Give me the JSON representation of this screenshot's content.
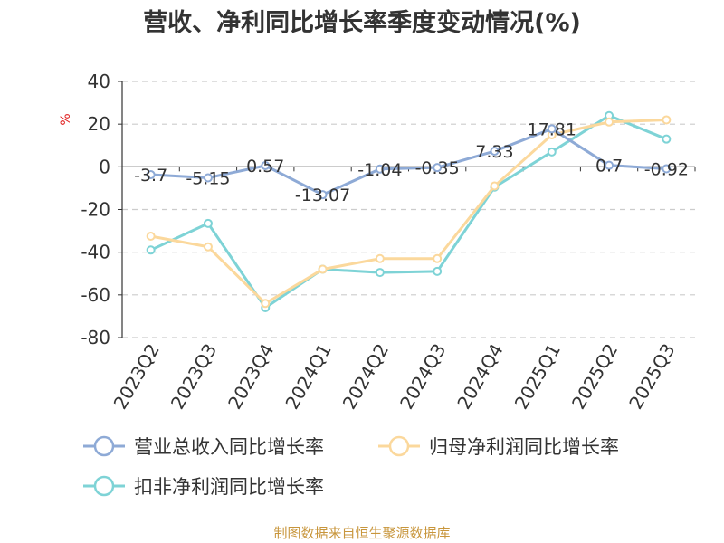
{
  "chart_data": {
    "type": "line",
    "title": "营收、净利同比增长率季度变动情况(%)",
    "ylabel": "%",
    "categories": [
      "2023Q2",
      "2023Q3",
      "2023Q4",
      "2024Q1",
      "2024Q2",
      "2024Q3",
      "2024Q4",
      "2025Q1",
      "2025Q2",
      "2025Q3"
    ],
    "ylim": [
      -80,
      40
    ],
    "yticks": [
      "40",
      "20",
      "0",
      "-20",
      "-40",
      "-60",
      "-80"
    ],
    "grid": true,
    "legend_position": "bottom",
    "series": [
      {
        "name": "营业总收入同比增长率",
        "color": "#8eaad6",
        "values": [
          -3.7,
          -5.15,
          0.57,
          -13.07,
          -1.04,
          -0.35,
          7.33,
          17.81,
          0.7,
          -0.92
        ],
        "labels": [
          "-3.7",
          "-5.15",
          "0.57",
          "-13.07",
          "-1.04",
          "-0.35",
          "7.33",
          "17.81",
          "0.7",
          "-0.92"
        ]
      },
      {
        "name": "归母净利润同比增长率",
        "color": "#fbd89c",
        "values": [
          -32.5,
          -37.5,
          -64,
          -48,
          -43,
          -43,
          -9,
          15,
          21,
          22
        ]
      },
      {
        "name": "扣非净利润同比增长率",
        "color": "#7ed3d6",
        "values": [
          -39,
          -26.5,
          -66,
          -48,
          -49.5,
          -49,
          -9.5,
          7,
          24,
          13
        ]
      }
    ],
    "source": "制图数据来自恒生聚源数据库"
  }
}
